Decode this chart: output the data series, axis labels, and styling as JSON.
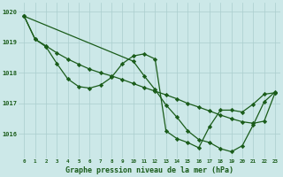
{
  "bg_color": "#cce8e8",
  "grid_color": "#aacece",
  "line_color": "#1a5c1a",
  "marker": "D",
  "markersize": 2.2,
  "linewidth": 0.9,
  "title": "Graphe pression niveau de la mer (hPa)",
  "hours": [
    0,
    1,
    2,
    3,
    4,
    5,
    6,
    7,
    8,
    9,
    10,
    11,
    12,
    13,
    14,
    15,
    16,
    17,
    18,
    19,
    20,
    21,
    22,
    23
  ],
  "ylim": [
    1015.2,
    1020.3
  ],
  "yticks": [
    1016,
    1017,
    1018,
    1019,
    1020
  ],
  "line1_x": [
    0,
    1,
    2,
    3,
    4,
    5,
    6,
    7,
    8,
    9,
    10,
    11,
    12,
    13,
    14,
    15,
    16,
    17,
    18,
    19,
    20,
    21,
    22,
    23
  ],
  "line1_y": [
    1019.85,
    1019.1,
    1018.88,
    1018.65,
    1018.45,
    1018.28,
    1018.12,
    1018.0,
    1017.9,
    1017.78,
    1017.65,
    1017.52,
    1017.4,
    1017.28,
    1017.15,
    1017.0,
    1016.88,
    1016.75,
    1016.62,
    1016.5,
    1016.4,
    1016.35,
    1016.42,
    1017.35
  ],
  "line2_x": [
    0,
    1,
    2,
    3,
    4,
    5,
    6,
    7,
    8,
    9,
    10,
    11,
    12,
    13,
    14,
    15,
    16,
    17,
    18,
    19,
    20,
    21,
    22,
    23
  ],
  "line2_y": [
    1019.85,
    1019.1,
    1018.85,
    1018.3,
    1017.8,
    1017.55,
    1017.5,
    1017.6,
    1017.85,
    1018.3,
    1018.55,
    1018.62,
    1018.45,
    1016.1,
    1015.85,
    1015.72,
    1015.55,
    1016.25,
    1016.78,
    1016.78,
    1016.72,
    1016.98,
    1017.3,
    1017.35
  ],
  "line3_x": [
    0,
    10,
    11,
    12,
    13,
    14,
    15,
    16,
    17,
    18,
    19,
    20,
    21,
    22,
    23
  ],
  "line3_y": [
    1019.85,
    1018.38,
    1017.9,
    1017.45,
    1016.95,
    1016.55,
    1016.1,
    1015.82,
    1015.72,
    1015.52,
    1015.42,
    1015.62,
    1016.3,
    1017.05,
    1017.38
  ]
}
